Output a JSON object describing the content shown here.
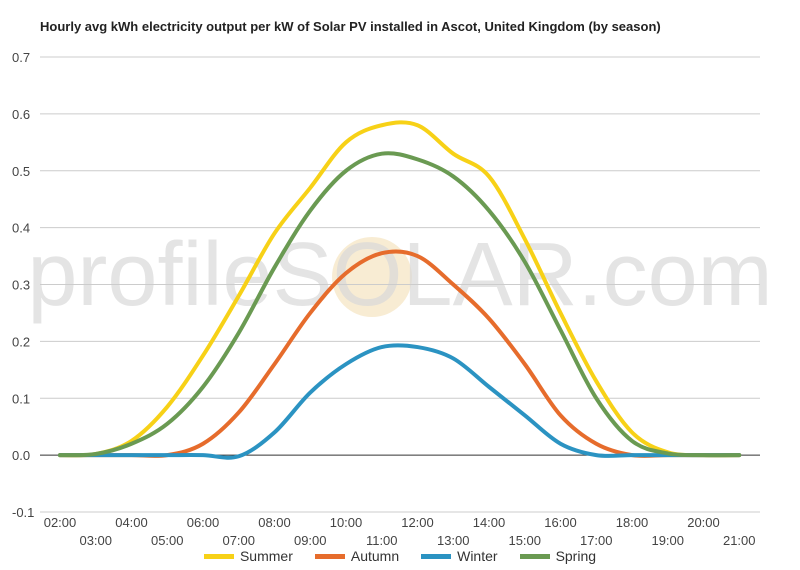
{
  "chart_data": {
    "type": "line",
    "title": "Hourly avg kWh electricity output per kW of Solar PV installed in Ascot, United Kingdom (by season)",
    "watermark": "profileSOLAR.com",
    "ylim": [
      -0.1,
      0.7
    ],
    "y_ticks": [
      "0.7",
      "0.6",
      "0.5",
      "0.4",
      "0.3",
      "0.2",
      "0.1",
      "0.0",
      "-0.1"
    ],
    "y_tick_values": [
      0.7,
      0.6,
      0.5,
      0.4,
      0.3,
      0.2,
      0.1,
      0.0,
      -0.1
    ],
    "x": [
      "02:00",
      "03:00",
      "04:00",
      "05:00",
      "06:00",
      "07:00",
      "08:00",
      "09:00",
      "10:00",
      "11:00",
      "12:00",
      "13:00",
      "14:00",
      "15:00",
      "16:00",
      "17:00",
      "18:00",
      "19:00",
      "20:00",
      "21:00"
    ],
    "grid": true,
    "legend_position": "bottom",
    "series": [
      {
        "name": "Summer",
        "color": "#f7d117",
        "values": [
          0.0,
          0.002,
          0.025,
          0.085,
          0.175,
          0.28,
          0.39,
          0.47,
          0.55,
          0.58,
          0.58,
          0.53,
          0.49,
          0.38,
          0.25,
          0.13,
          0.04,
          0.005,
          0.0,
          0.0
        ]
      },
      {
        "name": "Autumn",
        "color": "#e66c2c",
        "values": [
          0.0,
          0.0,
          0.0,
          0.0,
          0.02,
          0.075,
          0.16,
          0.25,
          0.32,
          0.355,
          0.35,
          0.3,
          0.24,
          0.16,
          0.07,
          0.02,
          0.0,
          0.0,
          0.0,
          0.0
        ]
      },
      {
        "name": "Winter",
        "color": "#2b93c2",
        "values": [
          0.0,
          0.0,
          0.0,
          0.0,
          0.0,
          -0.002,
          0.04,
          0.11,
          0.16,
          0.19,
          0.19,
          0.17,
          0.12,
          0.07,
          0.02,
          0.0,
          0.0,
          0.0,
          0.0,
          0.0
        ]
      },
      {
        "name": "Spring",
        "color": "#6a9a52",
        "values": [
          0.0,
          0.002,
          0.02,
          0.055,
          0.12,
          0.215,
          0.33,
          0.43,
          0.5,
          0.53,
          0.52,
          0.49,
          0.43,
          0.34,
          0.22,
          0.1,
          0.025,
          0.003,
          0.0,
          0.0
        ]
      }
    ]
  }
}
